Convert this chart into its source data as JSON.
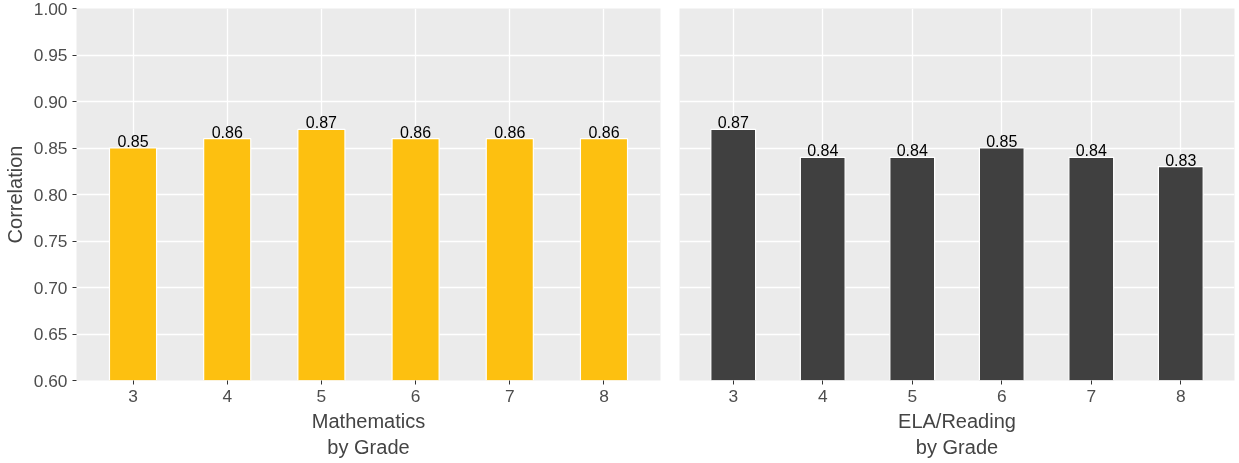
{
  "chart_data": [
    {
      "type": "bar",
      "xlabel": "Mathematics\nby Grade",
      "ylabel": "Correlation",
      "categories": [
        "3",
        "4",
        "5",
        "6",
        "7",
        "8"
      ],
      "values": [
        0.85,
        0.86,
        0.87,
        0.86,
        0.86,
        0.86
      ],
      "color": "#fdc010",
      "ylim": [
        0.6,
        1.0
      ],
      "yticks": [
        {
          "value": 0.6,
          "label": "0.60"
        },
        {
          "value": 0.65,
          "label": "0.65"
        },
        {
          "value": 0.7,
          "label": "0.70"
        },
        {
          "value": 0.75,
          "label": "0.75"
        },
        {
          "value": 0.8,
          "label": "0.80"
        },
        {
          "value": 0.85,
          "label": "0.85"
        },
        {
          "value": 0.9,
          "label": "0.90"
        },
        {
          "value": 0.95,
          "label": "0.95"
        },
        {
          "value": 1.0,
          "label": "1.00"
        }
      ],
      "grid": true,
      "data_labels": true
    },
    {
      "type": "bar",
      "xlabel": "ELA/Reading\nby Grade",
      "categories": [
        "3",
        "4",
        "5",
        "6",
        "7",
        "8"
      ],
      "values": [
        0.87,
        0.84,
        0.84,
        0.85,
        0.84,
        0.83
      ],
      "color": "#404040",
      "ylim": [
        0.6,
        1.0
      ],
      "yticks": [
        0.6,
        0.65,
        0.7,
        0.75,
        0.8,
        0.85,
        0.9,
        0.95,
        1.0
      ],
      "grid": true,
      "data_labels": true,
      "tick_labels": "x"
    }
  ]
}
